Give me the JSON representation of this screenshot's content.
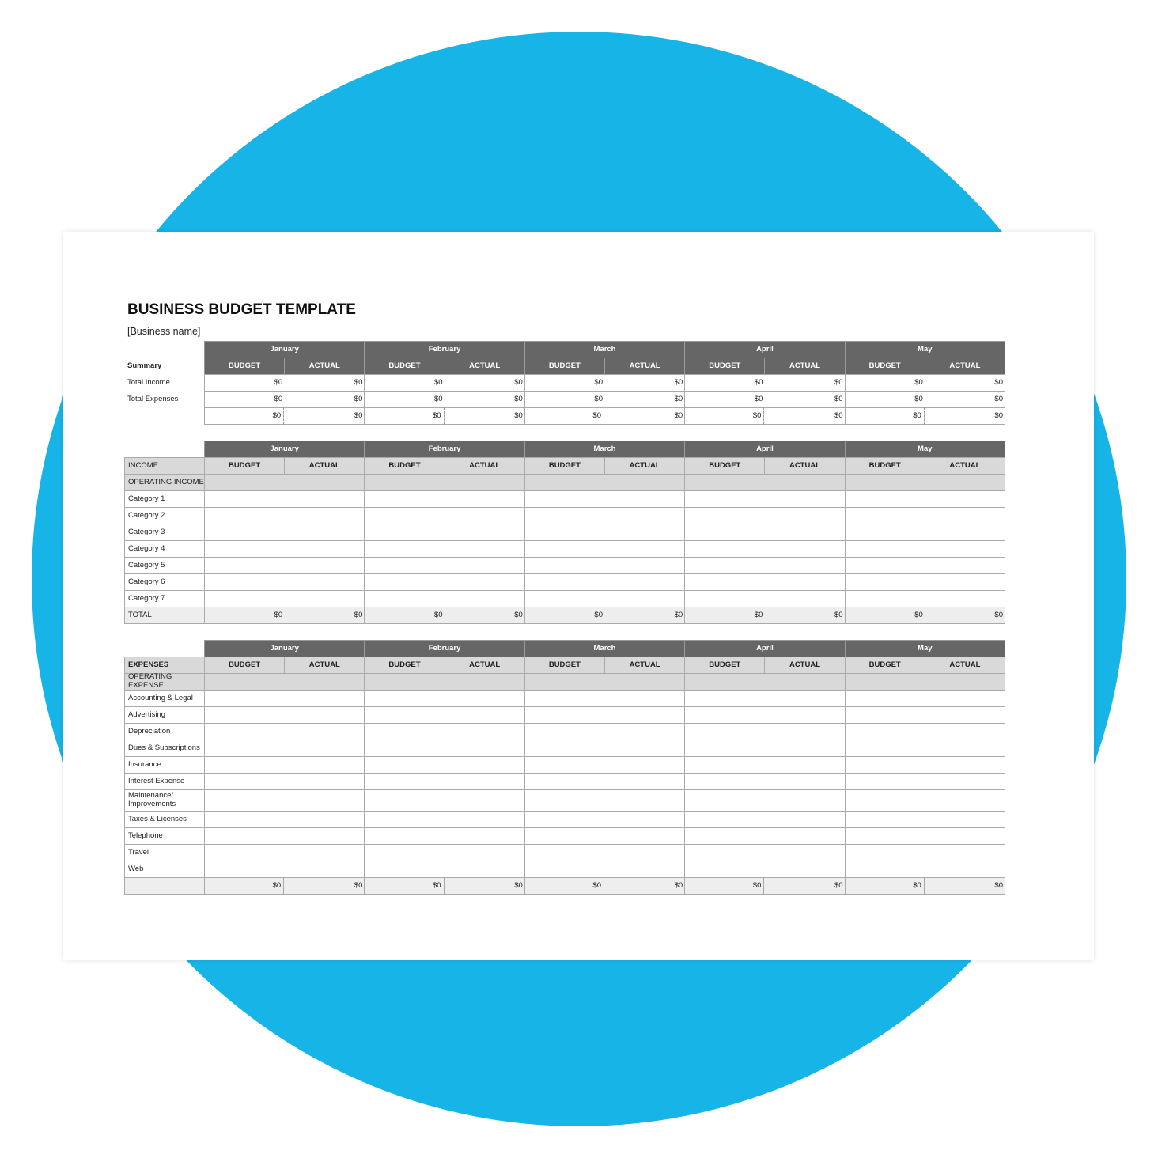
{
  "header": {
    "title": "BUSINESS BUDGET TEMPLATE",
    "subtitle": "[Business name]"
  },
  "months": [
    "January",
    "February",
    "March",
    "April",
    "May"
  ],
  "columns": [
    "BUDGET",
    "ACTUAL"
  ],
  "summary": {
    "label": "Summary",
    "rows": [
      {
        "label": "Total Income",
        "values": [
          "$0",
          "$0",
          "$0",
          "$0",
          "$0",
          "$0",
          "$0",
          "$0",
          "$0",
          "$0"
        ]
      },
      {
        "label": "Total Expenses",
        "values": [
          "$0",
          "$0",
          "$0",
          "$0",
          "$0",
          "$0",
          "$0",
          "$0",
          "$0",
          "$0"
        ]
      },
      {
        "values": [
          "$0",
          "$0",
          "$0",
          "$0",
          "$0",
          "$0",
          "$0",
          "$0",
          "$0",
          "$0"
        ]
      }
    ]
  },
  "income": {
    "label": "INCOME",
    "section": "OPERATING INCOME",
    "rows": [
      "Category 1",
      "Category 2",
      "Category 3",
      "Category 4",
      "Category 5",
      "Category 6",
      "Category 7"
    ],
    "total": {
      "label": "TOTAL",
      "values": [
        "$0",
        "$0",
        "$0",
        "$0",
        "$0",
        "$0",
        "$0",
        "$0",
        "$0",
        "$0"
      ]
    }
  },
  "expenses": {
    "label": "EXPENSES",
    "section": "OPERATING EXPENSE",
    "rows": [
      "Accounting & Legal",
      "Advertising",
      "Depreciation",
      "Dues & Subscriptions",
      "Insurance",
      "Interest Expense",
      "Maintenance/ Improvements",
      "Taxes & Licenses",
      "Telephone",
      "Travel",
      "Web"
    ],
    "total": {
      "values": [
        "$0",
        "$0",
        "$0",
        "$0",
        "$0",
        "$0",
        "$0",
        "$0",
        "$0",
        "$0"
      ]
    }
  }
}
